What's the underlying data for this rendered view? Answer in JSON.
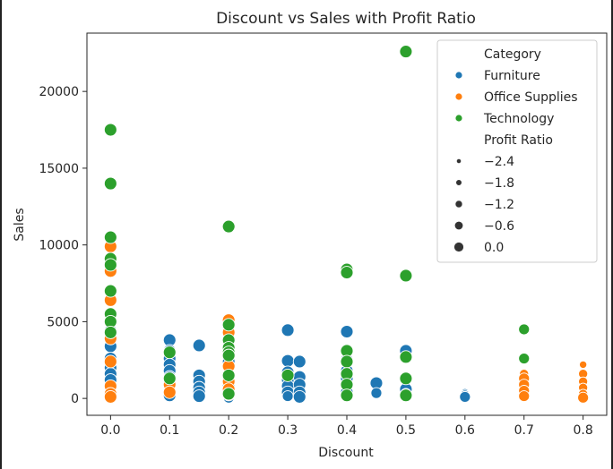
{
  "chart_data": {
    "type": "scatter",
    "title": "Discount vs Sales with Profit Ratio",
    "xlabel": "Discount",
    "ylabel": "Sales",
    "xlim": [
      -0.04,
      0.84
    ],
    "ylim": [
      -1100,
      23800
    ],
    "x_ticks": [
      "0.0",
      "0.1",
      "0.2",
      "0.3",
      "0.4",
      "0.5",
      "0.6",
      "0.7",
      "0.8"
    ],
    "y_ticks": [
      "0",
      "5000",
      "10000",
      "15000",
      "20000"
    ],
    "grid": false,
    "legend_placement": "top-right",
    "hue_title": "Category",
    "size_title": "Profit Ratio",
    "size_levels": [
      "−2.4",
      "−1.8",
      "−1.2",
      "−0.6",
      "0.0"
    ],
    "series": [
      {
        "name": "Furniture",
        "color": "#1f77b4",
        "points": [
          [
            0.0,
            4400,
            0
          ],
          [
            0.0,
            3400,
            0
          ],
          [
            0.0,
            2600,
            0
          ],
          [
            0.0,
            2000,
            0
          ],
          [
            0.0,
            1600,
            0
          ],
          [
            0.0,
            1200,
            0
          ],
          [
            0.1,
            3800,
            0
          ],
          [
            0.1,
            3100,
            0
          ],
          [
            0.1,
            2600,
            0
          ],
          [
            0.1,
            2200,
            0
          ],
          [
            0.1,
            1800,
            0
          ],
          [
            0.1,
            1400,
            0
          ],
          [
            0.1,
            900,
            0
          ],
          [
            0.1,
            500,
            0
          ],
          [
            0.1,
            200,
            0
          ],
          [
            0.15,
            3450,
            0
          ],
          [
            0.15,
            1500,
            0
          ],
          [
            0.15,
            1100,
            0
          ],
          [
            0.15,
            700,
            0
          ],
          [
            0.15,
            400,
            0
          ],
          [
            0.15,
            150,
            0
          ],
          [
            0.2,
            3800,
            0
          ],
          [
            0.2,
            2400,
            0
          ],
          [
            0.2,
            1400,
            0
          ],
          [
            0.2,
            800,
            0
          ],
          [
            0.2,
            300,
            0
          ],
          [
            0.2,
            50,
            -0.6
          ],
          [
            0.3,
            4450,
            0
          ],
          [
            0.3,
            2450,
            0
          ],
          [
            0.3,
            1700,
            0
          ],
          [
            0.3,
            1200,
            0
          ],
          [
            0.3,
            800,
            0
          ],
          [
            0.3,
            400,
            0
          ],
          [
            0.3,
            150,
            -0.6
          ],
          [
            0.32,
            2400,
            0
          ],
          [
            0.32,
            1400,
            0
          ],
          [
            0.32,
            900,
            0
          ],
          [
            0.32,
            400,
            0
          ],
          [
            0.32,
            100,
            0
          ],
          [
            0.4,
            4350,
            0
          ],
          [
            0.4,
            2500,
            0
          ],
          [
            0.4,
            1800,
            0
          ],
          [
            0.4,
            1300,
            0
          ],
          [
            0.4,
            800,
            0
          ],
          [
            0.4,
            400,
            0
          ],
          [
            0.45,
            1000,
            0
          ],
          [
            0.45,
            350,
            -0.6
          ],
          [
            0.5,
            3100,
            0
          ],
          [
            0.5,
            600,
            0
          ],
          [
            0.5,
            300,
            -0.6
          ],
          [
            0.5,
            100,
            -1.2
          ],
          [
            0.6,
            400,
            -1.8
          ],
          [
            0.6,
            250,
            -1.2
          ],
          [
            0.6,
            100,
            -0.6
          ]
        ]
      },
      {
        "name": "Office Supplies",
        "color": "#ff7f0e",
        "points": [
          [
            0.0,
            9900,
            0
          ],
          [
            0.0,
            9100,
            0
          ],
          [
            0.0,
            8300,
            0
          ],
          [
            0.0,
            6400,
            0
          ],
          [
            0.0,
            3900,
            0
          ],
          [
            0.0,
            2400,
            0
          ],
          [
            0.0,
            800,
            0
          ],
          [
            0.0,
            300,
            0
          ],
          [
            0.0,
            100,
            0
          ],
          [
            0.1,
            900,
            0
          ],
          [
            0.1,
            400,
            0
          ],
          [
            0.2,
            5100,
            0
          ],
          [
            0.2,
            4700,
            0
          ],
          [
            0.2,
            4300,
            0
          ],
          [
            0.2,
            2100,
            0
          ],
          [
            0.2,
            1100,
            0
          ],
          [
            0.2,
            600,
            0
          ],
          [
            0.2,
            250,
            0
          ],
          [
            0.7,
            1600,
            -1.2
          ],
          [
            0.7,
            1300,
            -0.6
          ],
          [
            0.7,
            900,
            -0.6
          ],
          [
            0.7,
            500,
            -0.6
          ],
          [
            0.7,
            150,
            -0.6
          ],
          [
            0.8,
            2200,
            -1.8
          ],
          [
            0.8,
            1600,
            -1.2
          ],
          [
            0.8,
            1100,
            -1.2
          ],
          [
            0.8,
            700,
            -1.2
          ],
          [
            0.8,
            300,
            -1.2
          ],
          [
            0.8,
            50,
            -0.6
          ]
        ]
      },
      {
        "name": "Technology",
        "color": "#2ca02c",
        "points": [
          [
            0.0,
            17500,
            0
          ],
          [
            0.0,
            14000,
            0
          ],
          [
            0.0,
            10500,
            0
          ],
          [
            0.0,
            9100,
            0
          ],
          [
            0.0,
            8700,
            0
          ],
          [
            0.0,
            7000,
            0
          ],
          [
            0.0,
            5500,
            0
          ],
          [
            0.0,
            5000,
            0
          ],
          [
            0.0,
            4300,
            0
          ],
          [
            0.1,
            3000,
            0
          ],
          [
            0.1,
            1300,
            0
          ],
          [
            0.2,
            11200,
            0
          ],
          [
            0.2,
            4800,
            0
          ],
          [
            0.2,
            3800,
            0
          ],
          [
            0.2,
            3300,
            0
          ],
          [
            0.2,
            3000,
            0
          ],
          [
            0.2,
            2800,
            0
          ],
          [
            0.2,
            1500,
            0
          ],
          [
            0.2,
            300,
            0
          ],
          [
            0.3,
            1500,
            0
          ],
          [
            0.4,
            8400,
            0
          ],
          [
            0.4,
            8200,
            0
          ],
          [
            0.4,
            3100,
            0
          ],
          [
            0.4,
            2400,
            0
          ],
          [
            0.4,
            1600,
            0
          ],
          [
            0.4,
            900,
            0
          ],
          [
            0.4,
            200,
            0
          ],
          [
            0.5,
            22600,
            0
          ],
          [
            0.5,
            8000,
            0
          ],
          [
            0.5,
            2700,
            0
          ],
          [
            0.5,
            1300,
            0
          ],
          [
            0.5,
            200,
            0
          ],
          [
            0.7,
            4500,
            -0.6
          ],
          [
            0.7,
            2600,
            -0.6
          ]
        ]
      }
    ]
  }
}
